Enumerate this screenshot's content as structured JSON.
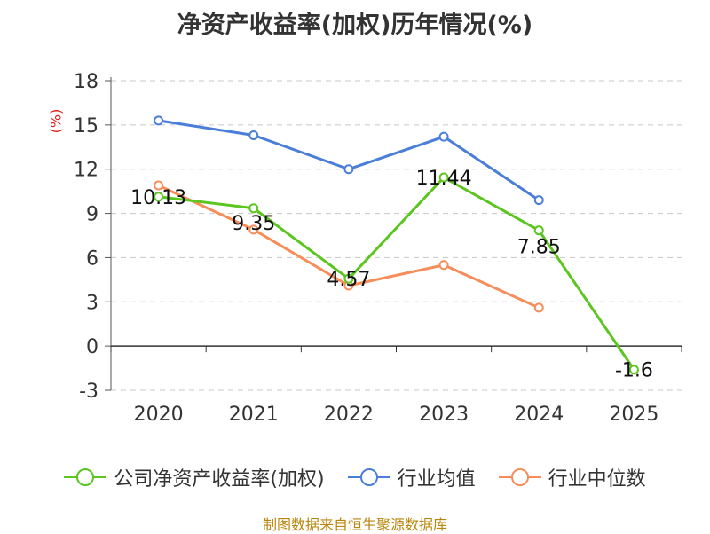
{
  "chart_data": {
    "type": "line",
    "title": "净资产收益率(加权)历年情况(%)",
    "ylabel": "(%)",
    "categories": [
      "2020",
      "2021",
      "2022",
      "2023",
      "2024",
      "2025"
    ],
    "ylim": [
      -3,
      18
    ],
    "yticks": [
      -3,
      0,
      3,
      6,
      9,
      12,
      15,
      18
    ],
    "ytick_labels": [
      "-3",
      "0",
      "3",
      "6",
      "9",
      "12",
      "15",
      "18"
    ],
    "grid": "horizontal-dashed",
    "series": [
      {
        "name": "公司净资产收益率(加权)",
        "color": "#5cc51f",
        "values": [
          10.13,
          9.35,
          4.57,
          11.44,
          7.85,
          -1.6
        ],
        "labels": [
          "10.13",
          "9.35",
          "4.57",
          "11.44",
          "7.85",
          "-1.6"
        ]
      },
      {
        "name": "行业均值",
        "color": "#4a7ed8",
        "values": [
          15.3,
          14.3,
          12.0,
          14.2,
          9.9,
          null
        ]
      },
      {
        "name": "行业中位数",
        "color": "#f68d5a",
        "values": [
          10.9,
          7.9,
          4.1,
          5.5,
          2.6,
          null
        ]
      }
    ],
    "legend_position": "bottom"
  },
  "colors": {
    "title": "#333333",
    "unit": "#e0221c",
    "footer": "#b8860b"
  },
  "footer": "制图数据来自恒生聚源数据库"
}
